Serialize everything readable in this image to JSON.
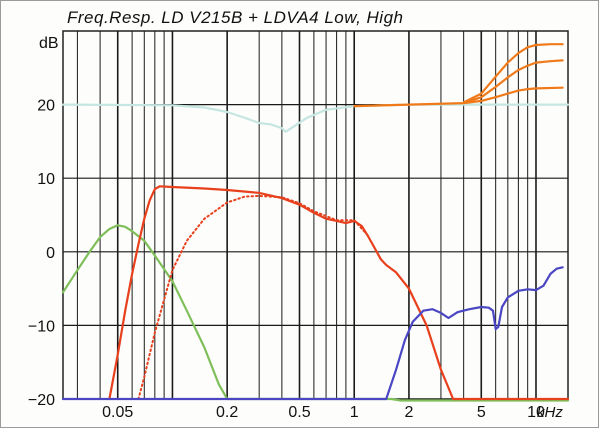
{
  "chart_data": {
    "type": "line",
    "title": "Freq.Resp.  LD V215B + LDVA4 Low, High",
    "ylabel": "dB",
    "xlabel_unit": "kHz",
    "x_scale": "log",
    "xlim": [
      0.025,
      15
    ],
    "ylim": [
      -20,
      30
    ],
    "grid": true,
    "y_ticks": [
      {
        "value": 20,
        "label": "20"
      },
      {
        "value": 10,
        "label": "10"
      },
      {
        "value": 0,
        "label": "0"
      },
      {
        "value": -10,
        "label": "−10"
      },
      {
        "value": -20,
        "label": "−20"
      }
    ],
    "x_ticks": [
      {
        "value": 0.05,
        "label": "0.05"
      },
      {
        "value": 0.2,
        "label": "0.2"
      },
      {
        "value": 0.5,
        "label": "0.5"
      },
      {
        "value": 1,
        "label": "1"
      },
      {
        "value": 2,
        "label": "2"
      },
      {
        "value": 5,
        "label": "5"
      },
      {
        "value": 10,
        "label": "10"
      }
    ],
    "series": [
      {
        "color": "#7fbf5a",
        "style": "solid",
        "points": [
          [
            0.025,
            -5.5
          ],
          [
            0.03,
            -2.5
          ],
          [
            0.035,
            0
          ],
          [
            0.04,
            2
          ],
          [
            0.045,
            3.1
          ],
          [
            0.05,
            3.6
          ],
          [
            0.055,
            3.4
          ],
          [
            0.06,
            2.8
          ],
          [
            0.07,
            1.5
          ],
          [
            0.08,
            -0.5
          ],
          [
            0.1,
            -4
          ],
          [
            0.12,
            -8
          ],
          [
            0.15,
            -13
          ],
          [
            0.18,
            -18
          ],
          [
            0.2,
            -20
          ],
          [
            1.6,
            -20
          ],
          [
            1.8,
            -20.2
          ],
          [
            15,
            -20.2
          ]
        ]
      },
      {
        "color": "#e8401c",
        "style": "solid",
        "points": [
          [
            0.045,
            -20
          ],
          [
            0.05,
            -14
          ],
          [
            0.055,
            -8
          ],
          [
            0.06,
            -3
          ],
          [
            0.065,
            1
          ],
          [
            0.07,
            4.5
          ],
          [
            0.075,
            7
          ],
          [
            0.08,
            8.5
          ],
          [
            0.085,
            8.9
          ],
          [
            0.1,
            8.8
          ],
          [
            0.15,
            8.6
          ],
          [
            0.2,
            8.4
          ],
          [
            0.3,
            8
          ],
          [
            0.4,
            7.3
          ],
          [
            0.5,
            6.4
          ],
          [
            0.6,
            5.3
          ],
          [
            0.7,
            4.5
          ],
          [
            0.8,
            4.2
          ],
          [
            0.9,
            3.9
          ],
          [
            1,
            4.2
          ],
          [
            1.1,
            3.5
          ],
          [
            1.2,
            2
          ],
          [
            1.4,
            -1
          ],
          [
            1.5,
            -1.8
          ],
          [
            1.7,
            -2.8
          ],
          [
            2,
            -5
          ],
          [
            2.5,
            -10
          ],
          [
            3,
            -16
          ],
          [
            3.5,
            -20
          ],
          [
            15,
            -20
          ]
        ]
      },
      {
        "color": "#e8401c",
        "style": "dotted",
        "points": [
          [
            0.065,
            -20
          ],
          [
            0.07,
            -17
          ],
          [
            0.08,
            -11
          ],
          [
            0.09,
            -6.5
          ],
          [
            0.1,
            -2.5
          ],
          [
            0.12,
            1.5
          ],
          [
            0.15,
            4.5
          ],
          [
            0.2,
            6.7
          ],
          [
            0.25,
            7.5
          ],
          [
            0.3,
            7.6
          ],
          [
            0.4,
            7.4
          ],
          [
            0.5,
            6.6
          ],
          [
            0.6,
            5.5
          ],
          [
            0.8,
            4.3
          ],
          [
            1,
            4.3
          ],
          [
            1.2,
            2.1
          ]
        ]
      },
      {
        "color": "#4a46c4",
        "style": "solid",
        "points": [
          [
            0.025,
            -20
          ],
          [
            1.5,
            -20
          ],
          [
            1.7,
            -16
          ],
          [
            1.9,
            -12
          ],
          [
            2.1,
            -9.5
          ],
          [
            2.4,
            -8
          ],
          [
            2.7,
            -7.8
          ],
          [
            3,
            -8.3
          ],
          [
            3.3,
            -9
          ],
          [
            3.7,
            -8.2
          ],
          [
            4.3,
            -7.8
          ],
          [
            5,
            -7.5
          ],
          [
            5.5,
            -7.6
          ],
          [
            5.8,
            -8
          ],
          [
            6,
            -10.5
          ],
          [
            6.2,
            -10.2
          ],
          [
            6.5,
            -7.5
          ],
          [
            7,
            -6.2
          ],
          [
            8,
            -5.3
          ],
          [
            9,
            -5.1
          ],
          [
            10,
            -5.2
          ],
          [
            11,
            -4.6
          ],
          [
            12,
            -3
          ],
          [
            13,
            -2.3
          ],
          [
            14,
            -2.1
          ]
        ]
      },
      {
        "color": "#c6e6e2",
        "style": "solid",
        "points": [
          [
            0.025,
            20
          ],
          [
            0.1,
            19.9
          ],
          [
            0.15,
            19.6
          ],
          [
            0.2,
            19
          ],
          [
            0.25,
            18.2
          ],
          [
            0.3,
            17.5
          ],
          [
            0.35,
            17.3
          ],
          [
            0.4,
            16.8
          ],
          [
            0.42,
            16.3
          ],
          [
            0.45,
            16.8
          ],
          [
            0.55,
            18.2
          ],
          [
            0.7,
            19.3
          ],
          [
            1,
            19.8
          ],
          [
            2,
            20
          ],
          [
            4,
            20
          ],
          [
            6,
            20
          ],
          [
            10,
            20
          ],
          [
            15,
            20
          ]
        ]
      },
      {
        "color": "#f07a1a",
        "style": "solid",
        "points": [
          [
            1,
            19.8
          ],
          [
            2,
            20
          ],
          [
            4,
            20.2
          ],
          [
            5,
            20.5
          ],
          [
            6,
            21
          ],
          [
            7,
            21.5
          ],
          [
            8,
            21.9
          ],
          [
            9,
            22.1
          ],
          [
            10,
            22.2
          ],
          [
            14,
            22.3
          ]
        ]
      },
      {
        "color": "#f07a1a",
        "style": "solid",
        "points": [
          [
            4,
            20.2
          ],
          [
            5,
            21
          ],
          [
            6,
            22.4
          ],
          [
            7,
            23.7
          ],
          [
            8,
            24.7
          ],
          [
            9,
            25.3
          ],
          [
            10,
            25.7
          ],
          [
            12,
            25.9
          ],
          [
            14,
            26
          ]
        ]
      },
      {
        "color": "#f07a1a",
        "style": "solid",
        "points": [
          [
            4,
            20.3
          ],
          [
            5,
            21.5
          ],
          [
            6,
            23.8
          ],
          [
            7,
            25.7
          ],
          [
            8,
            27
          ],
          [
            9,
            27.8
          ],
          [
            10,
            28.1
          ],
          [
            12,
            28.2
          ],
          [
            14,
            28.2
          ]
        ]
      }
    ]
  }
}
